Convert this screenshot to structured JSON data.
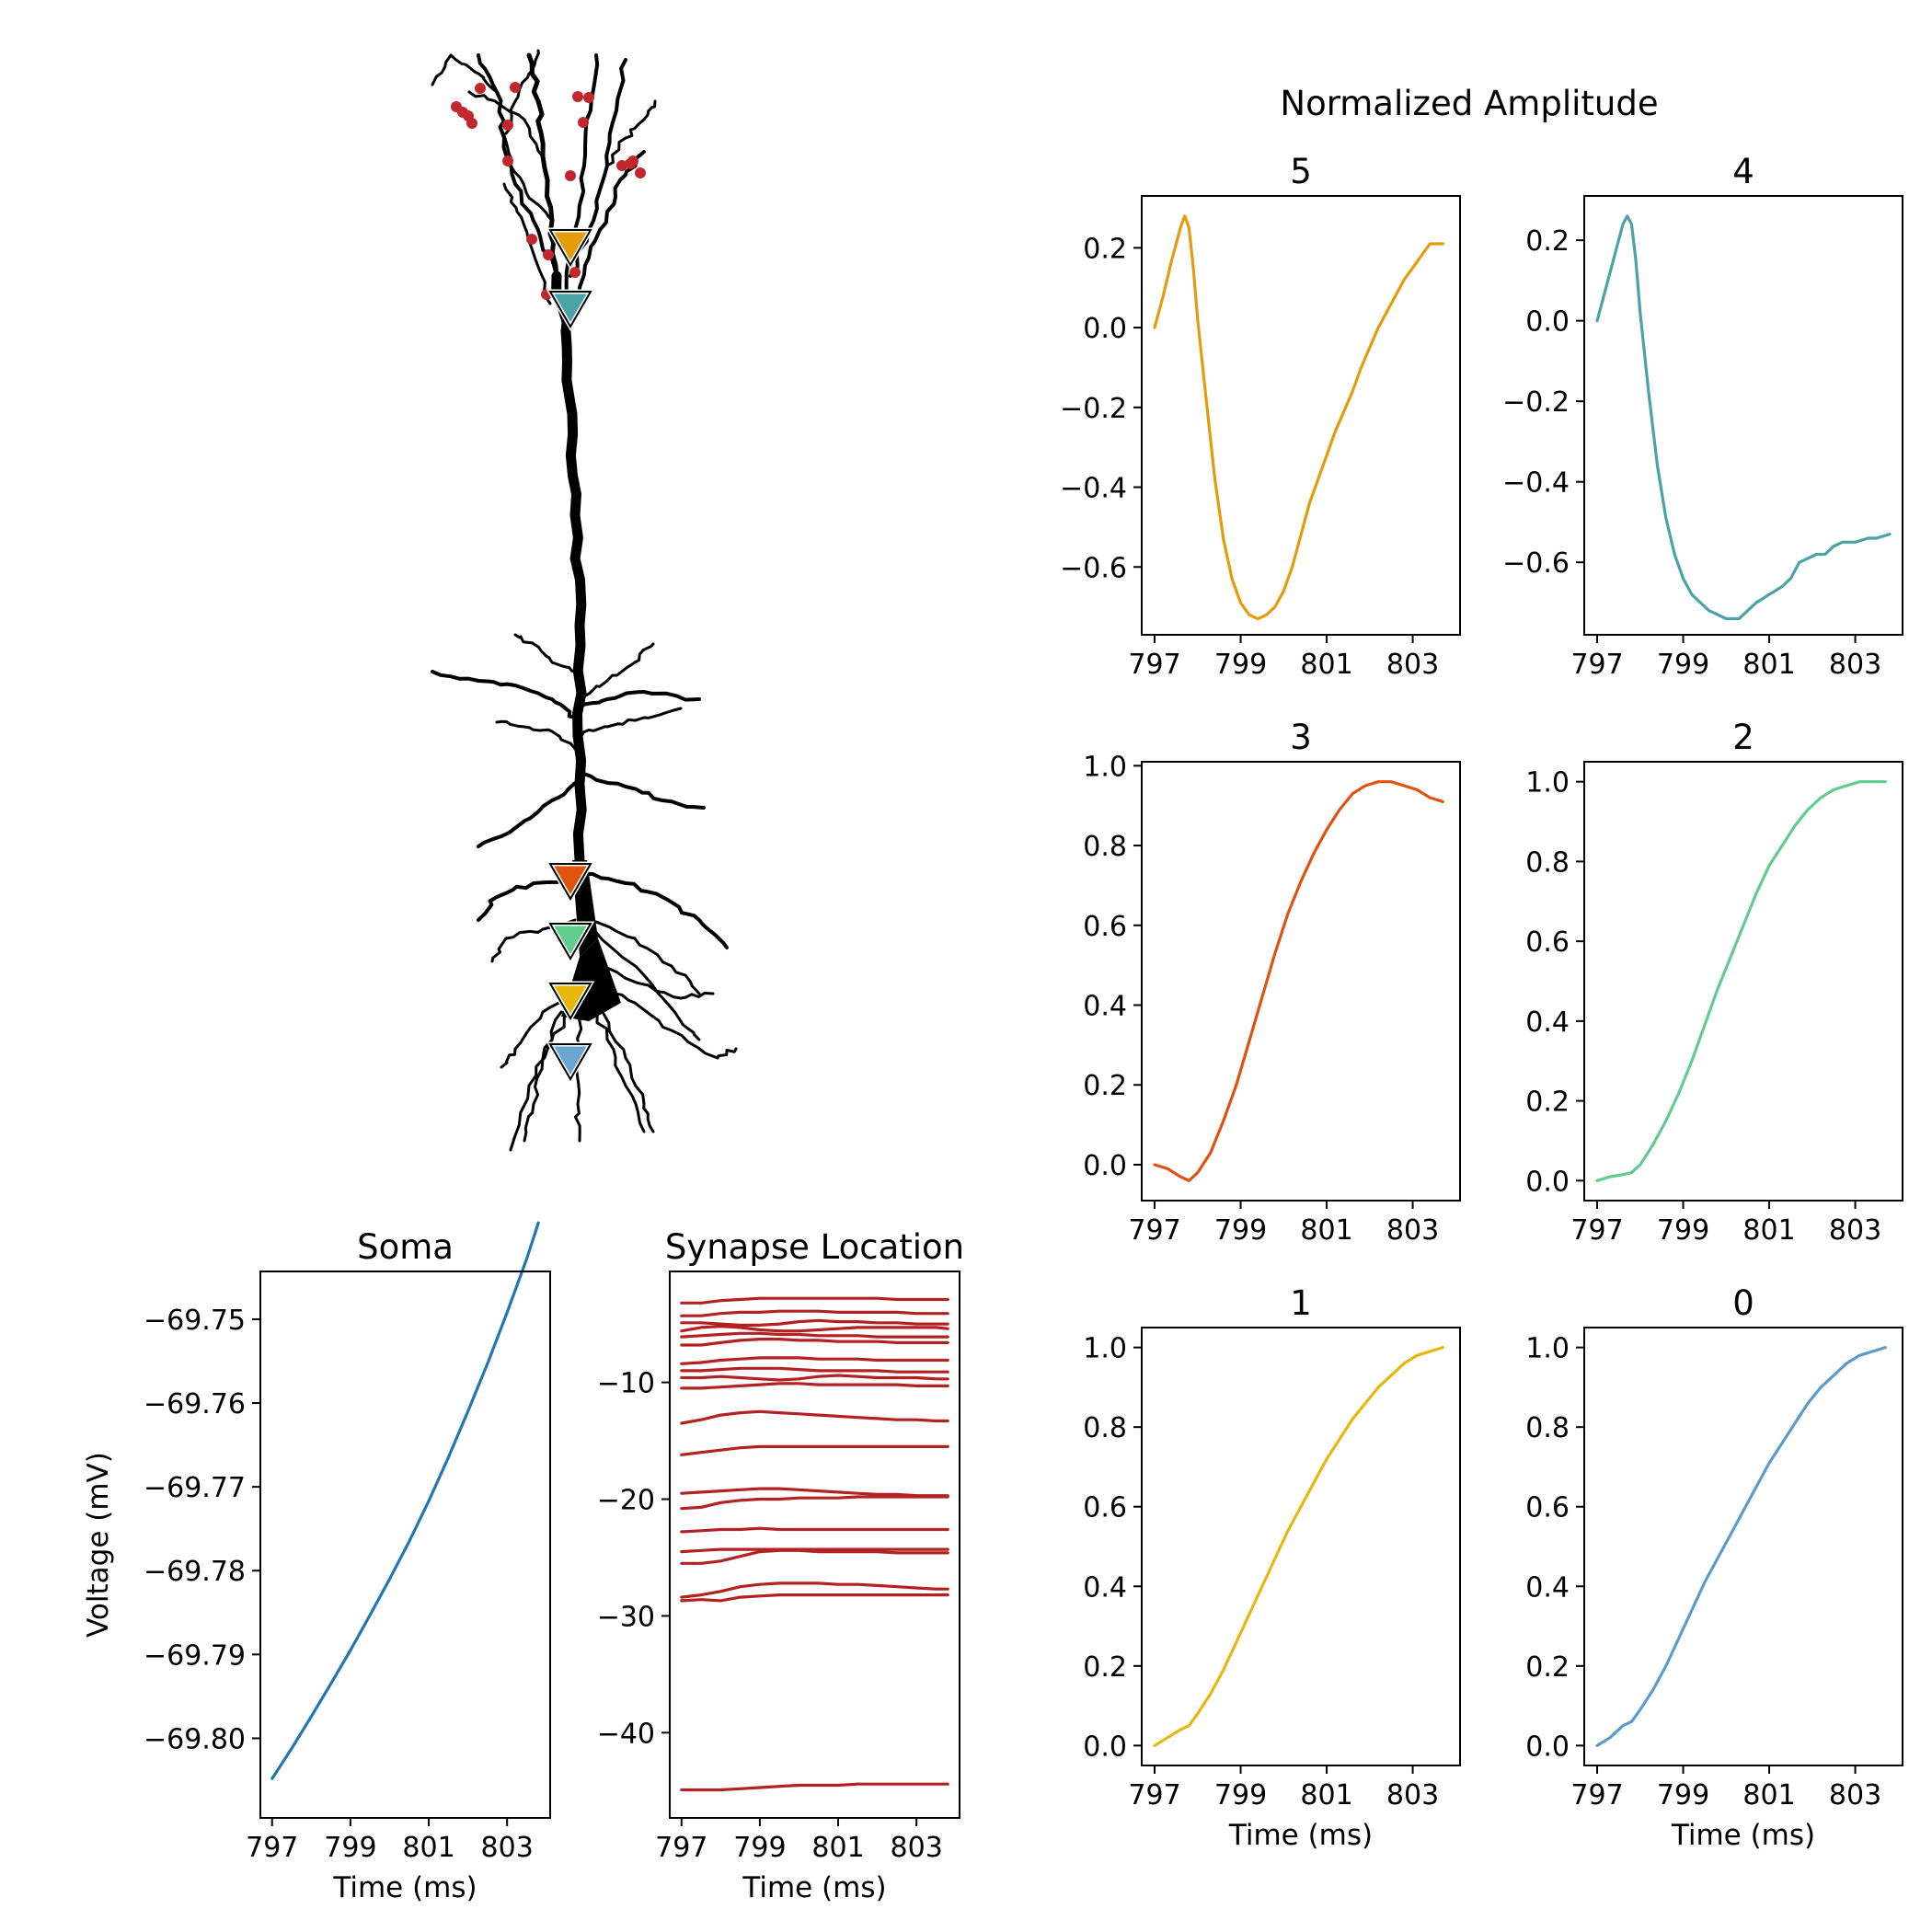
{
  "figure": {
    "suptitle": "Normalized Amplitude",
    "xlabel": "Time (ms)",
    "ylabel_soma": "Voltage (mV)"
  },
  "morphology": {
    "name": "pyramidal-neuron",
    "marker_colors": [
      "#e69b0c",
      "#4aa3a6",
      "#e0530f",
      "#5fcd8c",
      "#e7b70f",
      "#6ba6d3"
    ],
    "synapse_color": "#c1272d"
  },
  "chart_data": [
    {
      "id": "p5",
      "type": "line",
      "title": "5",
      "xlim": [
        796.7,
        804.1
      ],
      "ylim": [
        -0.77,
        0.33
      ],
      "xticks": [
        797,
        799,
        801,
        803
      ],
      "yticks": [
        0.2,
        0.0,
        -0.2,
        -0.4,
        -0.6
      ],
      "color": "#e69b0c",
      "x": [
        797.0,
        797.2,
        797.4,
        797.6,
        797.7,
        797.8,
        797.9,
        798.0,
        798.2,
        798.4,
        798.6,
        798.8,
        799.0,
        799.2,
        799.4,
        799.6,
        799.8,
        800.0,
        800.2,
        800.4,
        800.6,
        800.8,
        801.0,
        801.2,
        801.4,
        801.6,
        801.8,
        802.0,
        802.2,
        802.4,
        802.6,
        802.8,
        803.0,
        803.2,
        803.4,
        803.6,
        803.7
      ],
      "y": [
        0.0,
        0.08,
        0.17,
        0.25,
        0.28,
        0.25,
        0.15,
        0.02,
        -0.18,
        -0.38,
        -0.53,
        -0.63,
        -0.69,
        -0.72,
        -0.73,
        -0.72,
        -0.7,
        -0.66,
        -0.6,
        -0.52,
        -0.44,
        -0.38,
        -0.32,
        -0.26,
        -0.21,
        -0.16,
        -0.1,
        -0.05,
        0.0,
        0.04,
        0.08,
        0.12,
        0.15,
        0.18,
        0.21,
        0.21,
        0.21
      ]
    },
    {
      "id": "p4",
      "type": "line",
      "title": "4",
      "xlim": [
        796.7,
        804.1
      ],
      "ylim": [
        -0.78,
        0.31
      ],
      "xticks": [
        797,
        799,
        801,
        803
      ],
      "yticks": [
        0.2,
        0.0,
        -0.2,
        -0.4,
        -0.6
      ],
      "color": "#4aa3a6",
      "x": [
        797.0,
        797.2,
        797.4,
        797.6,
        797.7,
        797.8,
        797.9,
        798.0,
        798.2,
        798.4,
        798.6,
        798.8,
        799.0,
        799.2,
        799.4,
        799.6,
        799.8,
        800.0,
        800.2,
        800.3,
        800.5,
        800.7,
        801.0,
        801.3,
        801.5,
        801.7,
        801.9,
        802.1,
        802.3,
        802.5,
        802.7,
        803.0,
        803.3,
        803.5,
        803.8
      ],
      "y": [
        0.0,
        0.08,
        0.16,
        0.24,
        0.26,
        0.24,
        0.15,
        0.02,
        -0.18,
        -0.36,
        -0.49,
        -0.58,
        -0.64,
        -0.68,
        -0.7,
        -0.72,
        -0.73,
        -0.74,
        -0.74,
        -0.74,
        -0.72,
        -0.7,
        -0.68,
        -0.66,
        -0.64,
        -0.6,
        -0.59,
        -0.58,
        -0.58,
        -0.56,
        -0.55,
        -0.55,
        -0.54,
        -0.54,
        -0.53
      ]
    },
    {
      "id": "p3",
      "type": "line",
      "title": "3",
      "xlim": [
        796.7,
        804.1
      ],
      "ylim": [
        -0.09,
        1.01
      ],
      "xticks": [
        797,
        799,
        801,
        803
      ],
      "yticks": [
        0.0,
        0.2,
        0.4,
        0.6,
        0.8,
        1.0
      ],
      "color": "#e0530f",
      "x": [
        797.0,
        797.3,
        797.6,
        797.8,
        798.0,
        798.3,
        798.6,
        798.9,
        799.2,
        799.5,
        799.8,
        800.1,
        800.4,
        800.7,
        801.0,
        801.3,
        801.6,
        801.9,
        802.2,
        802.5,
        802.8,
        803.1,
        803.4,
        803.7
      ],
      "y": [
        0.0,
        -0.01,
        -0.03,
        -0.04,
        -0.02,
        0.03,
        0.11,
        0.2,
        0.31,
        0.42,
        0.53,
        0.63,
        0.71,
        0.78,
        0.84,
        0.89,
        0.93,
        0.95,
        0.96,
        0.96,
        0.95,
        0.94,
        0.92,
        0.91
      ]
    },
    {
      "id": "p2",
      "type": "line",
      "title": "2",
      "xlim": [
        796.7,
        804.1
      ],
      "ylim": [
        -0.05,
        1.05
      ],
      "xticks": [
        797,
        799,
        801,
        803
      ],
      "yticks": [
        0.0,
        0.2,
        0.4,
        0.6,
        0.8,
        1.0
      ],
      "color": "#5fcd8c",
      "x": [
        797.0,
        797.3,
        797.6,
        797.8,
        798.0,
        798.3,
        798.6,
        798.9,
        799.2,
        799.5,
        799.8,
        800.1,
        800.4,
        800.7,
        801.0,
        801.3,
        801.6,
        801.9,
        802.2,
        802.5,
        802.8,
        803.1,
        803.4,
        803.7
      ],
      "y": [
        0.0,
        0.01,
        0.015,
        0.02,
        0.04,
        0.09,
        0.15,
        0.22,
        0.3,
        0.39,
        0.48,
        0.56,
        0.64,
        0.72,
        0.79,
        0.84,
        0.89,
        0.93,
        0.96,
        0.98,
        0.99,
        1.0,
        1.0,
        1.0
      ]
    },
    {
      "id": "p1",
      "type": "line",
      "title": "1",
      "xlim": [
        796.7,
        804.1
      ],
      "ylim": [
        -0.05,
        1.05
      ],
      "xticks": [
        797,
        799,
        801,
        803
      ],
      "yticks": [
        0.0,
        0.2,
        0.4,
        0.6,
        0.8,
        1.0
      ],
      "color": "#e7b70f",
      "x": [
        797.0,
        797.3,
        797.6,
        797.8,
        798.0,
        798.3,
        798.6,
        798.9,
        799.2,
        799.5,
        799.8,
        800.1,
        800.4,
        800.7,
        801.0,
        801.3,
        801.6,
        801.9,
        802.2,
        802.5,
        802.8,
        803.1,
        803.4,
        803.7
      ],
      "y": [
        0.0,
        0.02,
        0.04,
        0.05,
        0.08,
        0.13,
        0.19,
        0.26,
        0.33,
        0.4,
        0.47,
        0.54,
        0.6,
        0.66,
        0.72,
        0.77,
        0.82,
        0.86,
        0.9,
        0.93,
        0.96,
        0.98,
        0.99,
        1.0
      ]
    },
    {
      "id": "p0",
      "type": "line",
      "title": "0",
      "xlim": [
        796.7,
        804.1
      ],
      "ylim": [
        -0.05,
        1.05
      ],
      "xticks": [
        797,
        799,
        801,
        803
      ],
      "yticks": [
        0.0,
        0.2,
        0.4,
        0.6,
        0.8,
        1.0
      ],
      "color": "#5b9ccc",
      "x": [
        797.0,
        797.3,
        797.6,
        797.8,
        798.0,
        798.3,
        798.6,
        798.9,
        799.2,
        799.5,
        799.8,
        800.1,
        800.4,
        800.7,
        801.0,
        801.3,
        801.6,
        801.9,
        802.2,
        802.5,
        802.8,
        803.1,
        803.4,
        803.7
      ],
      "y": [
        0.0,
        0.02,
        0.05,
        0.06,
        0.09,
        0.14,
        0.2,
        0.27,
        0.34,
        0.41,
        0.47,
        0.53,
        0.59,
        0.65,
        0.71,
        0.76,
        0.81,
        0.86,
        0.9,
        0.93,
        0.96,
        0.98,
        0.99,
        1.0
      ]
    },
    {
      "id": "soma",
      "type": "line",
      "title": "Soma",
      "ylabel": "Voltage (mV)",
      "xlim": [
        796.7,
        804.1
      ],
      "ylim": [
        -69.8095,
        -69.7443
      ],
      "xticks": [
        797,
        799,
        801,
        803
      ],
      "yticks": [
        -69.75,
        -69.76,
        -69.77,
        -69.78,
        -69.79,
        -69.8
      ],
      "color": "#1f77b4",
      "x": [
        797.0,
        797.5,
        798.0,
        798.5,
        799.0,
        799.5,
        800.0,
        800.5,
        801.0,
        801.5,
        802.0,
        802.5,
        803.0,
        803.5,
        803.8
      ],
      "y": [
        -69.8048,
        -69.8012,
        -69.7974,
        -69.7935,
        -69.7895,
        -69.7853,
        -69.781,
        -69.7765,
        -69.7717,
        -69.7665,
        -69.761,
        -69.7553,
        -69.7492,
        -69.7428,
        -69.7385
      ]
    },
    {
      "id": "syn",
      "type": "line",
      "title": "Synapse Location",
      "xlim": [
        796.7,
        804.1
      ],
      "ylim": [
        -47.3,
        -0.5
      ],
      "xticks": [
        797,
        799,
        801,
        803
      ],
      "yticks": [
        -10,
        -20,
        -30,
        -40
      ],
      "color": "#b22222",
      "x": [
        797.0,
        797.5,
        798.0,
        798.5,
        799.0,
        799.5,
        800.0,
        800.5,
        801.0,
        801.5,
        802.0,
        802.5,
        803.0,
        803.5,
        803.8
      ],
      "series": [
        [
          -3.2,
          -3.2,
          -3.0,
          -2.9,
          -2.8,
          -2.8,
          -2.8,
          -2.8,
          -2.8,
          -2.8,
          -2.8,
          -2.9,
          -2.9,
          -2.9,
          -2.9
        ],
        [
          -4.3,
          -4.3,
          -4.1,
          -4.0,
          -4.0,
          -3.9,
          -3.9,
          -3.9,
          -4.0,
          -4.0,
          -4.0,
          -4.0,
          -4.1,
          -4.1,
          -4.1
        ],
        [
          -4.9,
          -4.9,
          -5.0,
          -5.1,
          -5.1,
          -5.0,
          -4.8,
          -4.7,
          -4.8,
          -4.8,
          -4.9,
          -4.9,
          -5.0,
          -5.0,
          -5.0
        ],
        [
          -5.6,
          -5.3,
          -5.2,
          -5.3,
          -5.5,
          -5.6,
          -5.6,
          -5.5,
          -5.4,
          -5.3,
          -5.3,
          -5.3,
          -5.3,
          -5.3,
          -5.4
        ],
        [
          -6.1,
          -6.0,
          -5.9,
          -5.8,
          -5.8,
          -5.9,
          -5.9,
          -6.0,
          -6.0,
          -6.0,
          -6.1,
          -6.1,
          -6.1,
          -6.1,
          -6.1
        ],
        [
          -6.8,
          -6.8,
          -6.6,
          -6.4,
          -6.3,
          -6.3,
          -6.4,
          -6.4,
          -6.5,
          -6.5,
          -6.5,
          -6.6,
          -6.6,
          -6.6,
          -6.6
        ],
        [
          -8.4,
          -8.3,
          -8.1,
          -8.0,
          -7.9,
          -7.9,
          -7.9,
          -8.0,
          -8.0,
          -8.0,
          -8.1,
          -8.1,
          -8.1,
          -8.1,
          -8.1
        ],
        [
          -9.0,
          -9.0,
          -8.9,
          -8.8,
          -8.8,
          -8.8,
          -8.9,
          -9.0,
          -9.0,
          -9.0,
          -9.0,
          -9.1,
          -9.1,
          -9.1,
          -9.1
        ],
        [
          -9.6,
          -9.6,
          -9.5,
          -9.6,
          -9.7,
          -9.8,
          -9.7,
          -9.5,
          -9.4,
          -9.5,
          -9.6,
          -9.6,
          -9.6,
          -9.7,
          -9.7
        ],
        [
          -10.5,
          -10.5,
          -10.4,
          -10.3,
          -10.2,
          -10.1,
          -10.1,
          -10.2,
          -10.2,
          -10.2,
          -10.2,
          -10.2,
          -10.3,
          -10.3,
          -10.3
        ],
        [
          -13.5,
          -13.2,
          -12.8,
          -12.6,
          -12.5,
          -12.6,
          -12.7,
          -12.8,
          -12.9,
          -13.0,
          -13.1,
          -13.2,
          -13.2,
          -13.3,
          -13.3
        ],
        [
          -16.2,
          -16.0,
          -15.8,
          -15.6,
          -15.5,
          -15.5,
          -15.5,
          -15.5,
          -15.5,
          -15.5,
          -15.5,
          -15.5,
          -15.5,
          -15.5,
          -15.5
        ],
        [
          -19.5,
          -19.4,
          -19.3,
          -19.2,
          -19.1,
          -19.1,
          -19.2,
          -19.3,
          -19.4,
          -19.5,
          -19.6,
          -19.6,
          -19.7,
          -19.7,
          -19.7
        ],
        [
          -20.8,
          -20.7,
          -20.3,
          -20.1,
          -20.0,
          -20.0,
          -19.9,
          -19.9,
          -19.9,
          -19.8,
          -19.8,
          -19.8,
          -19.8,
          -19.8,
          -19.8
        ],
        [
          -22.8,
          -22.7,
          -22.6,
          -22.6,
          -22.5,
          -22.6,
          -22.6,
          -22.6,
          -22.6,
          -22.6,
          -22.6,
          -22.6,
          -22.6,
          -22.6,
          -22.6
        ],
        [
          -24.5,
          -24.4,
          -24.3,
          -24.3,
          -24.3,
          -24.3,
          -24.3,
          -24.3,
          -24.3,
          -24.3,
          -24.3,
          -24.3,
          -24.3,
          -24.3,
          -24.3
        ],
        [
          -25.5,
          -25.5,
          -25.3,
          -24.9,
          -24.5,
          -24.4,
          -24.4,
          -24.5,
          -24.5,
          -24.5,
          -24.5,
          -24.6,
          -24.6,
          -24.6,
          -24.6
        ],
        [
          -28.4,
          -28.2,
          -27.9,
          -27.5,
          -27.3,
          -27.2,
          -27.2,
          -27.2,
          -27.3,
          -27.3,
          -27.4,
          -27.5,
          -27.6,
          -27.7,
          -27.7
        ],
        [
          -28.7,
          -28.6,
          -28.7,
          -28.4,
          -28.3,
          -28.2,
          -28.2,
          -28.2,
          -28.2,
          -28.2,
          -28.2,
          -28.2,
          -28.2,
          -28.2,
          -28.2
        ],
        [
          -44.9,
          -44.9,
          -44.9,
          -44.8,
          -44.7,
          -44.6,
          -44.5,
          -44.5,
          -44.5,
          -44.4,
          -44.4,
          -44.4,
          -44.4,
          -44.4,
          -44.4
        ]
      ]
    }
  ]
}
